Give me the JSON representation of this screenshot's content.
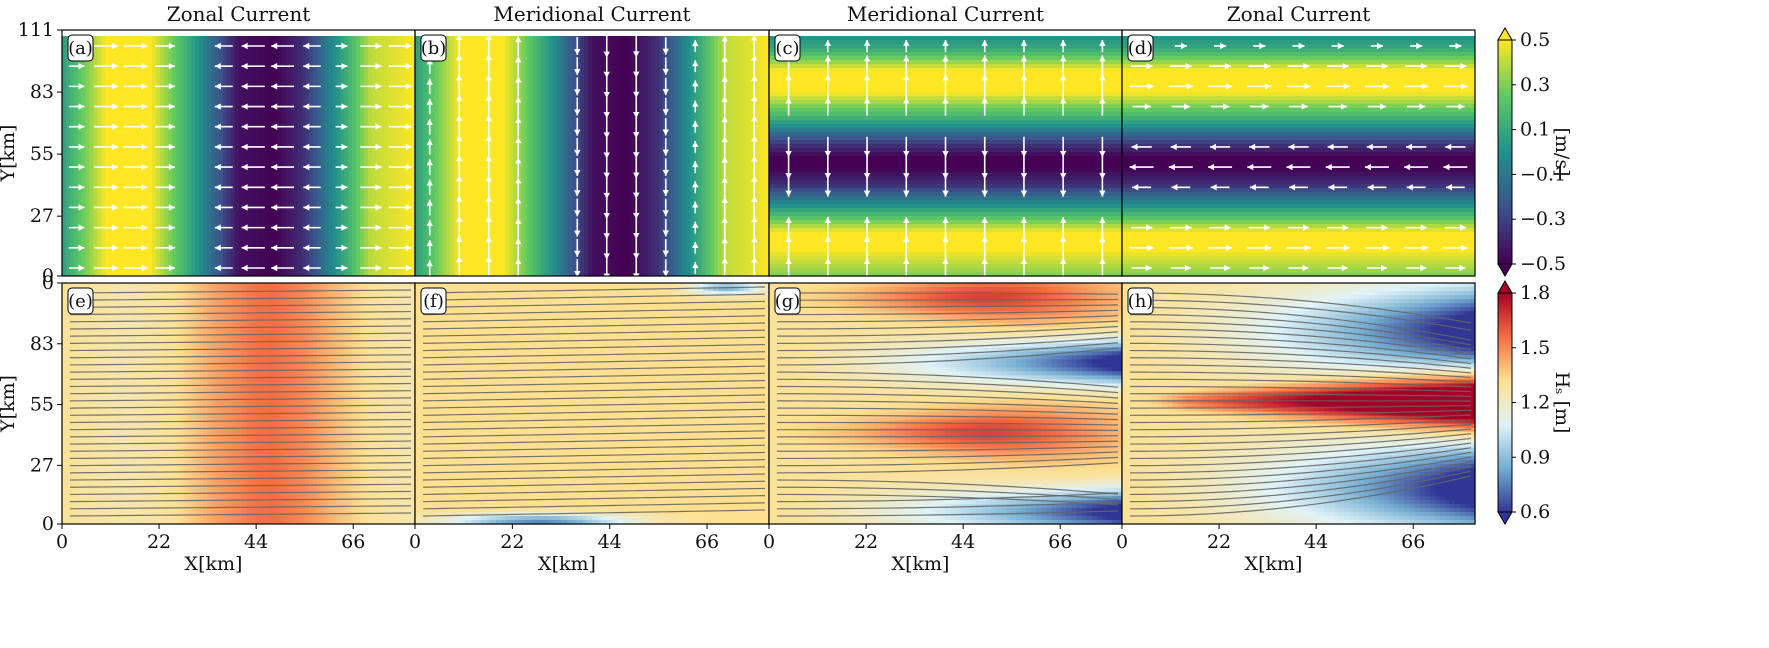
{
  "chart_data": {
    "type": "heatmap",
    "columns": [
      {
        "title": "Zonal Current"
      },
      {
        "title": "Meridional Current"
      },
      {
        "title": "Meridional Current"
      },
      {
        "title": "Zonal Current"
      }
    ],
    "xlabel": "X[km]",
    "ylabel": "Y[km]",
    "x_ticks": [
      0,
      22,
      44,
      66
    ],
    "y_ticks": [
      0,
      27,
      55,
      83,
      111
    ],
    "x_range": [
      0,
      80
    ],
    "y_range": [
      0,
      111
    ],
    "panels": [
      {
        "tag": "(a)",
        "row": 0,
        "col": 0,
        "field": "current_speed",
        "pattern": "vertical_bands",
        "direction": "zonal",
        "profile": {
          "x": [
            0,
            10,
            20,
            30,
            40,
            48,
            55,
            62,
            70,
            80
          ],
          "value": [
            0.05,
            0.5,
            0.5,
            0.05,
            -0.45,
            -0.5,
            -0.35,
            0.0,
            0.4,
            0.5
          ]
        }
      },
      {
        "tag": "(b)",
        "row": 0,
        "col": 1,
        "field": "current_speed",
        "pattern": "vertical_bands",
        "direction": "meridional",
        "profile": {
          "x": [
            0,
            10,
            20,
            30,
            40,
            48,
            55,
            62,
            70,
            80
          ],
          "value": [
            0.05,
            0.5,
            0.5,
            0.05,
            -0.45,
            -0.5,
            -0.35,
            0.0,
            0.4,
            0.5
          ]
        }
      },
      {
        "tag": "(c)",
        "row": 0,
        "col": 2,
        "field": "current_speed",
        "pattern": "horizontal_bands",
        "direction": "meridional",
        "profile": {
          "y": [
            0,
            12,
            20,
            30,
            42,
            50,
            55,
            62,
            72,
            85,
            95,
            105,
            111
          ],
          "value": [
            0.3,
            0.5,
            0.5,
            0.1,
            -0.35,
            -0.5,
            -0.5,
            -0.3,
            0.1,
            0.5,
            0.5,
            0.1,
            0.0
          ]
        }
      },
      {
        "tag": "(d)",
        "row": 0,
        "col": 3,
        "field": "current_speed",
        "pattern": "horizontal_bands",
        "direction": "zonal",
        "profile": {
          "y": [
            0,
            12,
            20,
            30,
            42,
            50,
            55,
            62,
            72,
            85,
            95,
            105,
            111
          ],
          "value": [
            0.3,
            0.5,
            0.5,
            0.1,
            -0.35,
            -0.5,
            -0.5,
            -0.3,
            0.1,
            0.5,
            0.5,
            0.1,
            0.0
          ]
        }
      },
      {
        "tag": "(e)",
        "row": 1,
        "col": 0,
        "field": "significant_wave_height",
        "pattern": "vertical_bands",
        "profile": {
          "x": [
            0,
            15,
            25,
            35,
            44,
            48,
            55,
            62,
            70,
            80
          ],
          "value": [
            1.3,
            1.25,
            1.3,
            1.45,
            1.55,
            1.56,
            1.5,
            1.4,
            1.3,
            1.25
          ]
        }
      },
      {
        "tag": "(f)",
        "row": 1,
        "col": 1,
        "field": "significant_wave_height",
        "pattern": "uniform",
        "value": 1.32
      },
      {
        "tag": "(g)",
        "row": 1,
        "col": 2,
        "field": "significant_wave_height",
        "pattern": "focusing",
        "base": 1.3
      },
      {
        "tag": "(h)",
        "row": 1,
        "col": 3,
        "field": "significant_wave_height",
        "pattern": "strong_focusing",
        "base": 1.3
      }
    ],
    "colorbars": [
      {
        "label": "[m/s]",
        "ticks": [
          0.5,
          0.3,
          0.1,
          -0.1,
          -0.3,
          -0.5
        ],
        "tick_labels": [
          "0.5",
          "0.3",
          "0.1",
          "−0.1",
          "−0.3",
          "−0.5"
        ],
        "range": [
          -0.5,
          0.5
        ],
        "colormap": "viridis",
        "extend": "both",
        "colors": [
          "#440154",
          "#3b528b",
          "#21918c",
          "#5ec962",
          "#fde725"
        ]
      },
      {
        "label": "Hₛ [m]",
        "ticks": [
          1.8,
          1.5,
          1.2,
          0.9,
          0.6
        ],
        "tick_labels": [
          "1.8",
          "1.5",
          "1.2",
          "0.9",
          "0.6"
        ],
        "range": [
          0.6,
          1.8
        ],
        "colormap": "RdYlBu_r",
        "extend": "both",
        "colors": [
          "#313695",
          "#74add1",
          "#e0f3f8",
          "#fee090",
          "#f46d43",
          "#a50026"
        ]
      }
    ]
  }
}
